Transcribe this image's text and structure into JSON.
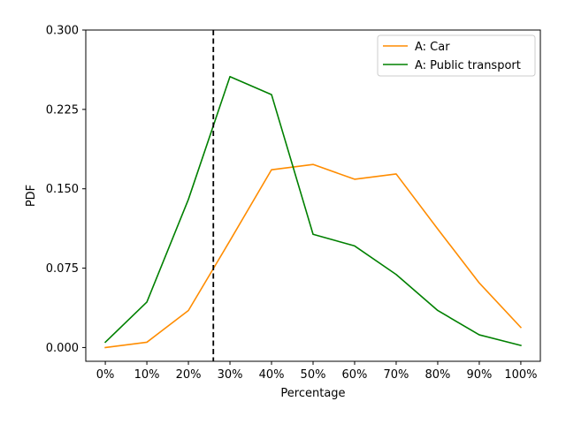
{
  "chart_data": {
    "type": "line",
    "title": "",
    "xlabel": "Percentage",
    "ylabel": "PDF",
    "categories": [
      "0%",
      "10%",
      "20%",
      "30%",
      "40%",
      "50%",
      "60%",
      "70%",
      "80%",
      "90%",
      "100%"
    ],
    "x": [
      0,
      10,
      20,
      30,
      40,
      50,
      60,
      70,
      80,
      90,
      100
    ],
    "xlim": [
      -4.7,
      104.7
    ],
    "ylim": [
      -0.013,
      0.3
    ],
    "yticks": [
      0.0,
      0.075,
      0.15,
      0.225,
      0.3
    ],
    "ytick_labels": [
      "0.000",
      "0.075",
      "0.150",
      "0.225",
      "0.300"
    ],
    "grid": false,
    "legend_position": "upper right",
    "series": [
      {
        "name": "A: Car",
        "color": "#ff8c00",
        "values": [
          0.0,
          0.005,
          0.035,
          0.101,
          0.168,
          0.173,
          0.159,
          0.164,
          0.112,
          0.061,
          0.019
        ]
      },
      {
        "name": "A: Public transport",
        "color": "#008000",
        "values": [
          0.005,
          0.043,
          0.14,
          0.256,
          0.239,
          0.107,
          0.096,
          0.069,
          0.035,
          0.012,
          0.002
        ]
      }
    ],
    "vertical_line": {
      "x": 26,
      "style": "dashed",
      "color": "#000000"
    }
  }
}
